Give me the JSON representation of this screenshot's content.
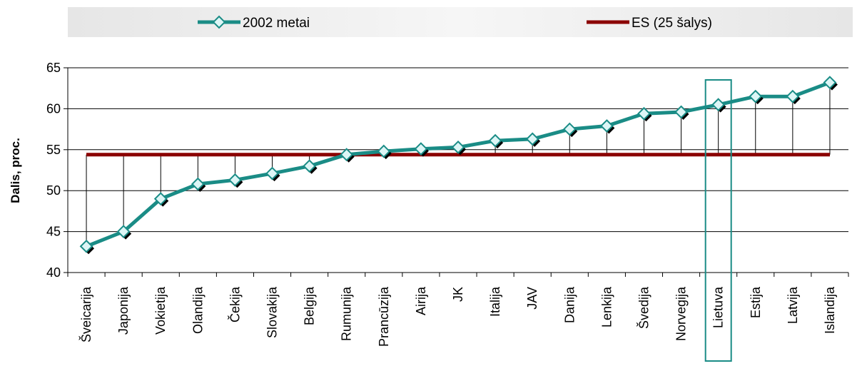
{
  "chart_data": {
    "type": "line",
    "ylabel": "Dalis, proc.",
    "ylim": [
      40,
      65
    ],
    "yticks": [
      40,
      45,
      50,
      55,
      60,
      65
    ],
    "grid": true,
    "legend_placement": "top",
    "categories": [
      "Šveicarija",
      "Japonija",
      "Vokietija",
      "Olandija",
      "Čekija",
      "Slovakija",
      "Belgija",
      "Rumunija",
      "Prancūzija",
      "Airija",
      "JK",
      "Italija",
      "JAV",
      "Danija",
      "Lenkija",
      "Švedija",
      "Norvegija",
      "Lietuva",
      "Estija",
      "Latvija",
      "Islandija"
    ],
    "series": [
      {
        "name": "2002 metai",
        "color": "#1a8c86",
        "marker": "diamond",
        "values": [
          43.2,
          45.0,
          49.0,
          50.8,
          51.3,
          52.1,
          53.0,
          54.4,
          54.8,
          55.1,
          55.3,
          56.1,
          56.3,
          57.5,
          57.9,
          59.4,
          59.6,
          60.5,
          61.5,
          61.5,
          63.2
        ]
      },
      {
        "name": "ES (25 šalys)",
        "color": "#8b0000",
        "values": [
          54.4,
          54.4,
          54.4,
          54.4,
          54.4,
          54.4,
          54.4,
          54.4,
          54.4,
          54.4,
          54.4,
          54.4,
          54.4,
          54.4,
          54.4,
          54.4,
          54.4,
          54.4,
          54.4,
          54.4,
          54.4
        ]
      }
    ],
    "highlight": {
      "category": "Lietuva",
      "color": "#1a8c86"
    }
  }
}
